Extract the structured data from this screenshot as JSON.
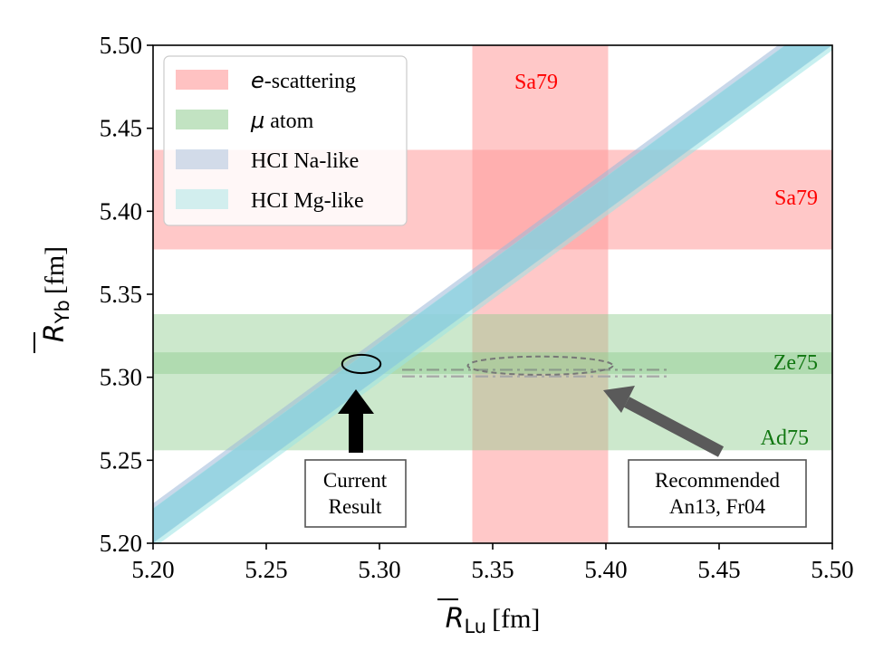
{
  "chart_data": {
    "type": "scatter",
    "xlabel": {
      "symbol": "R",
      "sub": "Lu",
      "unit": "[fm]"
    },
    "ylabel": {
      "symbol": "R",
      "sub": "Yb",
      "unit": "[fm]"
    },
    "xlim": [
      5.2,
      5.5
    ],
    "ylim": [
      5.2,
      5.5
    ],
    "xticks": [
      "5.20",
      "5.25",
      "5.30",
      "5.35",
      "5.40",
      "5.45",
      "5.50"
    ],
    "yticks": [
      "5.20",
      "5.25",
      "5.30",
      "5.35",
      "5.40",
      "5.45",
      "5.50"
    ],
    "colors": {
      "e_scattering": "#ff9a9a",
      "mu_atom": "#8fcc8f",
      "hci_na": "#9cb8d8",
      "hci_mg": "#9be3e3",
      "diagonal": "#7ec8dc",
      "label_red": "#ff0000",
      "label_green": "#117711",
      "arrow_gray": "#5a5a5a"
    },
    "bands": [
      {
        "series": "e-scattering",
        "orientation": "vertical",
        "from": 5.341,
        "to": 5.401,
        "label": "Sa79"
      },
      {
        "series": "e-scattering",
        "orientation": "horizontal",
        "from": 5.377,
        "to": 5.437,
        "label": "Sa79"
      },
      {
        "series": "mu atom",
        "orientation": "horizontal",
        "from": 5.256,
        "to": 5.338,
        "label": "Ad75"
      },
      {
        "series": "mu atom",
        "orientation": "horizontal",
        "from": 5.302,
        "to": 5.315,
        "label": "Ze75"
      }
    ],
    "diagonal_bands": [
      {
        "series": "HCI Na-like",
        "y_at_x520": 5.212,
        "slope": 1.0,
        "halfwidth": 0.012
      },
      {
        "series": "HCI Mg-like",
        "y_at_x520": 5.209,
        "slope": 1.0,
        "halfwidth": 0.012
      }
    ],
    "current_result": {
      "x": 5.292,
      "y": 5.308,
      "dx": 0.0085,
      "dy": 0.0055
    },
    "recommended": {
      "x": 5.371,
      "y": 5.307,
      "dx": 0.032,
      "dy": 0.0055
    },
    "dashdot_lines": [
      {
        "from": 5.31,
        "to": 5.428,
        "y": 5.3045
      },
      {
        "from": 5.31,
        "to": 5.428,
        "y": 5.3005
      }
    ],
    "legend": {
      "position": "top-left",
      "entries": [
        {
          "prefix": "e",
          "text": "-scattering"
        },
        {
          "prefix": "μ",
          "text": " atom"
        },
        {
          "prefix": "",
          "text": "HCI Na-like"
        },
        {
          "prefix": "",
          "text": "HCI Mg-like"
        }
      ]
    },
    "annotations": [
      {
        "id": "current",
        "lines": [
          "Current",
          "Result"
        ]
      },
      {
        "id": "recommended",
        "lines": [
          "Recommended",
          "An13, Fr04"
        ]
      }
    ]
  }
}
